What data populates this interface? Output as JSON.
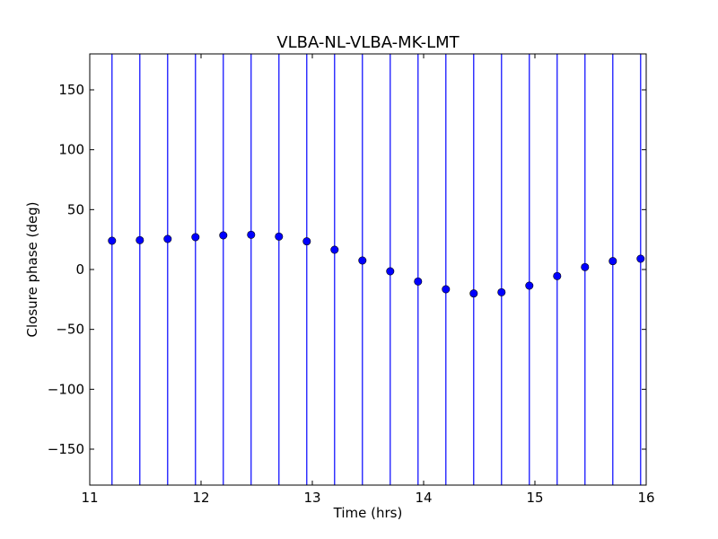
{
  "chart_data": {
    "type": "scatter",
    "title": "VLBA-NL-VLBA-MK-LMT",
    "xlabel": "Time (hrs)",
    "ylabel": "Closure phase (deg)",
    "xlim": [
      11,
      16
    ],
    "ylim": [
      -180,
      180
    ],
    "xticks": [
      11,
      12,
      13,
      14,
      15,
      16
    ],
    "xtick_labels": [
      "11",
      "12",
      "13",
      "14",
      "15",
      "16"
    ],
    "yticks": [
      -150,
      -100,
      -50,
      0,
      50,
      100,
      150
    ],
    "ytick_labels": [
      "−150",
      "−100",
      "−50",
      "0",
      "50",
      "100",
      "150"
    ],
    "grid": false,
    "series": [
      {
        "marker": "circle",
        "color": "#0000ff",
        "errorbar_color": "#0000ff",
        "errorbars": "full-range",
        "x": [
          11.2,
          11.45,
          11.7,
          11.95,
          12.2,
          12.45,
          12.7,
          12.95,
          13.2,
          13.45,
          13.7,
          13.95,
          14.2,
          14.45,
          14.7,
          14.95,
          15.2,
          15.45,
          15.7,
          15.95
        ],
        "y": [
          24,
          24.5,
          25.5,
          27,
          28.5,
          29,
          27.5,
          23.5,
          16.5,
          7.5,
          -1.5,
          -10,
          -16.5,
          -20,
          -19,
          -13.5,
          -5.5,
          2,
          7,
          9
        ]
      }
    ]
  }
}
